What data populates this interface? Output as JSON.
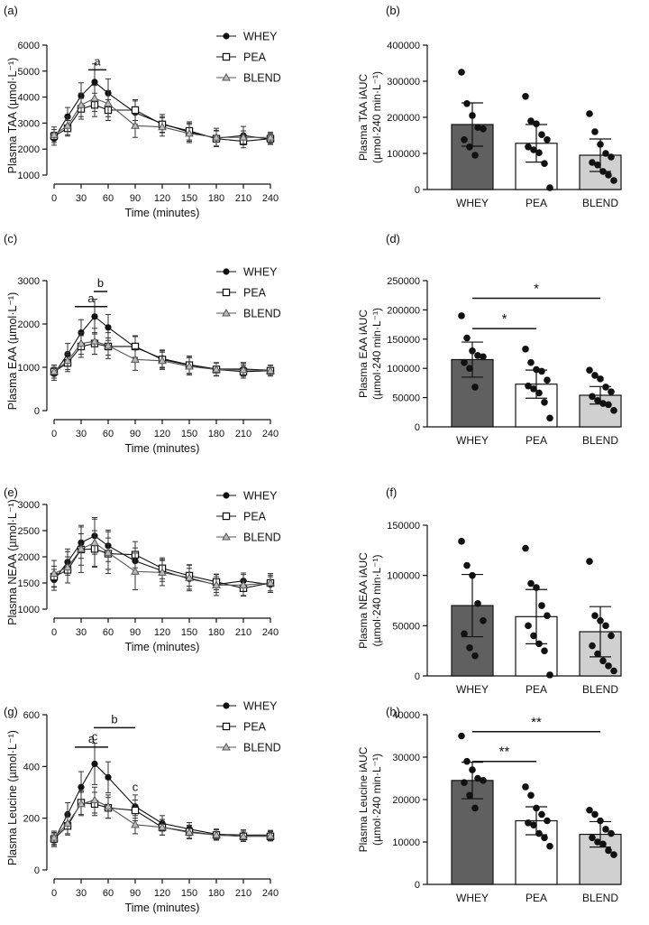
{
  "colors": {
    "whey_bar": "#606060",
    "pea_bar": "#ffffff",
    "blend_bar": "#d0d0d0",
    "ink": "#111111"
  },
  "chart_data": [
    {
      "id": "a",
      "panel_label": "(a)",
      "type": "line",
      "ylabel": "Plasma TAA (µmol·L⁻¹)",
      "xlabel": "Time (minutes)",
      "ylim": [
        1000,
        6000
      ],
      "yticks": [
        1000,
        2000,
        3000,
        4000,
        5000,
        6000
      ],
      "xlim": [
        0,
        240
      ],
      "xticks": [
        0,
        30,
        60,
        90,
        120,
        150,
        180,
        210,
        240
      ],
      "x": [
        0,
        15,
        30,
        45,
        60,
        90,
        120,
        150,
        180,
        210,
        240
      ],
      "series": [
        {
          "name": "WHEY",
          "marker": "circle",
          "values": [
            2400,
            3250,
            4050,
            4580,
            4150,
            3400,
            2980,
            2650,
            2420,
            2520,
            2380
          ],
          "err": [
            250,
            350,
            500,
            700,
            550,
            450,
            350,
            350,
            300,
            350,
            200
          ]
        },
        {
          "name": "PEA",
          "marker": "square",
          "values": [
            2500,
            2800,
            3550,
            3700,
            3500,
            3500,
            2950,
            2700,
            2400,
            2300,
            2400
          ],
          "err": [
            250,
            300,
            400,
            450,
            400,
            400,
            300,
            350,
            300,
            250,
            200
          ]
        },
        {
          "name": "BLEND",
          "marker": "triangle",
          "values": [
            2550,
            2900,
            3700,
            3950,
            3750,
            2900,
            2850,
            2600,
            2450,
            2450,
            2450
          ],
          "err": [
            300,
            350,
            450,
            500,
            500,
            450,
            350,
            350,
            350,
            250,
            200
          ]
        }
      ],
      "annotations": [
        {
          "text": "a",
          "x1": 38,
          "x2": 58,
          "y": 5050
        }
      ]
    },
    {
      "id": "b",
      "panel_label": "(b)",
      "type": "bar",
      "ylabel": [
        "Plasma TAA iAUC",
        "(µmol·240 min·L⁻¹)"
      ],
      "ylim": [
        0,
        400000
      ],
      "yticks": [
        0,
        100000,
        200000,
        300000,
        400000
      ],
      "categories": [
        "WHEY",
        "PEA",
        "BLEND"
      ],
      "values": [
        180000,
        128000,
        95000
      ],
      "err": [
        60000,
        52000,
        45000
      ],
      "points": [
        [
          325000,
          238000,
          205000,
          172000,
          168000,
          138000,
          118000,
          95000
        ],
        [
          258000,
          190000,
          182000,
          152000,
          138000,
          118000,
          110000,
          102000,
          72000,
          5000
        ],
        [
          210000,
          160000,
          125000,
          100000,
          90000,
          75000,
          68000,
          50000,
          40000,
          25000
        ]
      ],
      "significance": []
    },
    {
      "id": "c",
      "panel_label": "(c)",
      "type": "line",
      "ylabel": "Plasma EAA (µmol·L⁻¹)",
      "xlabel": "Time (minutes)",
      "ylim": [
        0,
        3000
      ],
      "yticks": [
        0,
        1000,
        2000,
        3000
      ],
      "xlim": [
        0,
        240
      ],
      "xticks": [
        0,
        30,
        60,
        90,
        120,
        150,
        180,
        210,
        240
      ],
      "x": [
        0,
        15,
        30,
        45,
        60,
        90,
        120,
        150,
        180,
        210,
        240
      ],
      "series": [
        {
          "name": "WHEY",
          "marker": "circle",
          "values": [
            850,
            1300,
            1800,
            2170,
            1920,
            1460,
            1200,
            1060,
            960,
            960,
            930
          ],
          "err": [
            150,
            250,
            300,
            400,
            300,
            250,
            200,
            200,
            150,
            150,
            120
          ]
        },
        {
          "name": "PEA",
          "marker": "square",
          "values": [
            900,
            1100,
            1480,
            1550,
            1480,
            1480,
            1180,
            1050,
            950,
            900,
            920
          ],
          "err": [
            150,
            200,
            250,
            250,
            200,
            250,
            200,
            200,
            150,
            150,
            120
          ]
        },
        {
          "name": "BLEND",
          "marker": "triangle",
          "values": [
            900,
            1150,
            1550,
            1600,
            1500,
            1180,
            1150,
            1020,
            950,
            940,
            920
          ],
          "err": [
            150,
            200,
            250,
            300,
            300,
            250,
            200,
            200,
            150,
            150,
            120
          ]
        }
      ],
      "annotations": [
        {
          "text": "a",
          "x1": 23,
          "x2": 59,
          "y": 2400
        },
        {
          "text": "b",
          "x1": 44,
          "x2": 59,
          "y": 2750
        }
      ]
    },
    {
      "id": "d",
      "panel_label": "(d)",
      "type": "bar",
      "ylabel": [
        "Plasma EAA iAUC",
        "(µmol·240 min·L⁻¹)"
      ],
      "ylim": [
        0,
        250000
      ],
      "yticks": [
        0,
        50000,
        100000,
        150000,
        200000,
        250000
      ],
      "categories": [
        "WHEY",
        "PEA",
        "BLEND"
      ],
      "values": [
        115000,
        73000,
        54000
      ],
      "err": [
        30000,
        24000,
        15000
      ],
      "points": [
        [
          190000,
          152000,
          130000,
          122000,
          120000,
          110000,
          100000,
          68000
        ],
        [
          133000,
          110000,
          98000,
          95000,
          80000,
          70000,
          65000,
          58000,
          42000,
          15000
        ],
        [
          97000,
          88000,
          82000,
          68000,
          60000,
          52000,
          45000,
          40000,
          38000,
          28000
        ]
      ],
      "significance": [
        {
          "text": "*",
          "from": 0,
          "to": 1,
          "y": 168000
        },
        {
          "text": "*",
          "from": 0,
          "to": 2,
          "y": 220000
        }
      ]
    },
    {
      "id": "e",
      "panel_label": "(e)",
      "type": "line",
      "ylabel": "Plasma NEAA (µmol·L⁻¹)",
      "xlabel": "Time (minutes)",
      "ylim": [
        1000,
        3000
      ],
      "yticks": [
        1000,
        1500,
        2000,
        2500,
        3000
      ],
      "xlim": [
        0,
        240
      ],
      "xticks": [
        0,
        30,
        60,
        90,
        120,
        150,
        180,
        210,
        240
      ],
      "x": [
        0,
        15,
        30,
        45,
        60,
        90,
        120,
        150,
        180,
        210,
        240
      ],
      "series": [
        {
          "name": "WHEY",
          "marker": "circle",
          "values": [
            1560,
            1900,
            2270,
            2400,
            2210,
            1920,
            1730,
            1580,
            1470,
            1540,
            1470
          ],
          "err": [
            200,
            250,
            300,
            350,
            300,
            250,
            200,
            200,
            150,
            150,
            150
          ]
        },
        {
          "name": "PEA",
          "marker": "square",
          "values": [
            1620,
            1750,
            2140,
            2150,
            2060,
            2040,
            1780,
            1640,
            1520,
            1400,
            1500
          ],
          "err": [
            200,
            250,
            300,
            350,
            300,
            250,
            200,
            200,
            150,
            150,
            150
          ]
        },
        {
          "name": "BLEND",
          "marker": "triangle",
          "values": [
            1680,
            1800,
            2150,
            2270,
            2080,
            1720,
            1700,
            1600,
            1460,
            1460,
            1500
          ],
          "err": [
            250,
            300,
            450,
            450,
            400,
            350,
            250,
            250,
            200,
            200,
            180
          ]
        }
      ],
      "annotations": []
    },
    {
      "id": "f",
      "panel_label": "(f)",
      "type": "bar",
      "ylabel": [
        "Plasma NEAA iAUC",
        "(µmol·240 min·L⁻¹)"
      ],
      "ylim": [
        0,
        150000
      ],
      "yticks": [
        0,
        50000,
        100000,
        150000
      ],
      "categories": [
        "WHEY",
        "PEA",
        "BLEND"
      ],
      "values": [
        70000,
        59000,
        44000
      ],
      "err": [
        31000,
        27000,
        25000
      ],
      "points": [
        [
          134000,
          110000,
          100000,
          72000,
          55000,
          42000,
          28000,
          20000
        ],
        [
          127000,
          92000,
          88000,
          70000,
          60000,
          50000,
          40000,
          32000,
          25000,
          1000
        ],
        [
          114000,
          60000,
          55000,
          50000,
          40000,
          30000,
          22000,
          15000,
          10000,
          5000
        ]
      ],
      "significance": []
    },
    {
      "id": "g",
      "panel_label": "(g)",
      "type": "line",
      "ylabel": "Plasma Leucine (µmol·L⁻¹)",
      "xlabel": "Time (minutes)",
      "ylim": [
        0,
        600
      ],
      "yticks": [
        0,
        200,
        400,
        600
      ],
      "xlim": [
        0,
        240
      ],
      "xticks": [
        0,
        30,
        60,
        90,
        120,
        150,
        180,
        210,
        240
      ],
      "x": [
        0,
        15,
        30,
        45,
        60,
        90,
        120,
        150,
        180,
        210,
        240
      ],
      "series": [
        {
          "name": "WHEY",
          "marker": "circle",
          "values": [
            115,
            215,
            320,
            410,
            358,
            245,
            180,
            158,
            138,
            135,
            135
          ],
          "err": [
            25,
            45,
            60,
            80,
            60,
            45,
            30,
            25,
            20,
            20,
            18
          ]
        },
        {
          "name": "PEA",
          "marker": "square",
          "values": [
            120,
            170,
            260,
            255,
            240,
            230,
            165,
            148,
            135,
            130,
            130
          ],
          "err": [
            25,
            35,
            45,
            45,
            40,
            40,
            30,
            25,
            20,
            20,
            18
          ]
        },
        {
          "name": "BLEND",
          "marker": "triangle",
          "values": [
            125,
            180,
            255,
            270,
            245,
            175,
            165,
            145,
            135,
            130,
            132
          ],
          "err": [
            25,
            40,
            45,
            50,
            45,
            35,
            30,
            25,
            20,
            20,
            18
          ]
        }
      ],
      "annotations": [
        {
          "text": "a",
          "x1": 23,
          "x2": 60,
          "y": 475
        },
        {
          "text": "b",
          "x1": 44,
          "x2": 90,
          "y": 550
        }
      ],
      "markers_text": [
        {
          "text": "c",
          "x": 45,
          "y": 500
        },
        {
          "text": "c",
          "x": 90,
          "y": 305
        }
      ]
    },
    {
      "id": "h",
      "panel_label": "(h)",
      "type": "bar",
      "ylabel": [
        "Plasma Leucine iAUC",
        "(µmol·240 min·L⁻¹)"
      ],
      "ylim": [
        0,
        40000
      ],
      "yticks": [
        0,
        10000,
        20000,
        30000,
        40000
      ],
      "categories": [
        "WHEY",
        "PEA",
        "BLEND"
      ],
      "values": [
        24500,
        15000,
        11800
      ],
      "err": [
        4300,
        3300,
        3000
      ],
      "points": [
        [
          35000,
          29000,
          27000,
          25000,
          24500,
          24000,
          21000,
          18000
        ],
        [
          23000,
          21000,
          18000,
          16500,
          15000,
          14500,
          14000,
          12000,
          11000,
          9000
        ],
        [
          17500,
          16500,
          15000,
          13000,
          12000,
          11000,
          10000,
          9500,
          8000,
          7000
        ]
      ],
      "significance": [
        {
          "text": "**",
          "from": 0,
          "to": 1,
          "y": 29000
        },
        {
          "text": "**",
          "from": 0,
          "to": 2,
          "y": 36000
        }
      ]
    }
  ]
}
